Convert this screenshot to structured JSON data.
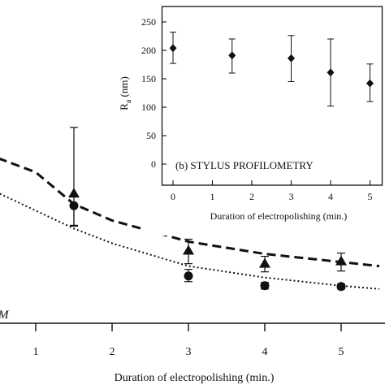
{
  "chart_data": [
    {
      "type": "scatter",
      "xlabel": "Duration of electropolishing (min.)",
      "ylabel": "",
      "xlim": [
        0,
        5.5
      ],
      "ylim": [
        0,
        220
      ],
      "x_ticks": [
        1,
        2,
        3,
        4,
        5
      ],
      "corner_label": "M",
      "grid": false,
      "series": [
        {
          "marker": "triangle",
          "points": [
            {
              "x": 1.5,
              "y": 159,
              "err_low": 119,
              "err_high": 240
            },
            {
              "x": 3,
              "y": 89,
              "err_low": 73,
              "err_high": 103
            },
            {
              "x": 4,
              "y": 73,
              "err_low": 63,
              "err_high": 82
            },
            {
              "x": 5,
              "y": 76,
              "err_low": 64,
              "err_high": 86
            }
          ],
          "fit_line": "dashed",
          "fit_points": [
            [
              0,
              220
            ],
            [
              1,
              185
            ],
            [
              1.5,
              146
            ],
            [
              2,
              126
            ],
            [
              3,
              100
            ],
            [
              4,
              85
            ],
            [
              5,
              75
            ],
            [
              5.5,
              70
            ]
          ]
        },
        {
          "marker": "circle",
          "points": [
            {
              "x": 1.5,
              "y": 144,
              "err_low": 120,
              "err_high": 144
            },
            {
              "x": 3,
              "y": 58,
              "err_low": 51,
              "err_high": 66
            },
            {
              "x": 4,
              "y": 46,
              "err_low": 42,
              "err_high": 50
            },
            {
              "x": 5,
              "y": 45,
              "err_low": 42,
              "err_high": 48
            }
          ],
          "fit_line": "dotted",
          "fit_points": [
            [
              0,
              182
            ],
            [
              1,
              138
            ],
            [
              1.5,
              116
            ],
            [
              2,
              98
            ],
            [
              3,
              70
            ],
            [
              4,
              56
            ],
            [
              5,
              46
            ],
            [
              5.5,
              42
            ]
          ]
        }
      ]
    },
    {
      "type": "scatter",
      "title": "(b) STYLUS PROFILOMETRY",
      "xlabel": "Duration of electropolishing (min.)",
      "ylabel": "Ra (nm)",
      "ylabel_main": "R",
      "ylabel_sub": "a",
      "ylabel_unit": " (nm)",
      "xlim": [
        -0.5,
        5.3
      ],
      "ylim": [
        -15,
        250
      ],
      "x_ticks": [
        0,
        1,
        2,
        3,
        4,
        5
      ],
      "y_ticks": [
        0,
        50,
        100,
        150,
        200,
        250
      ],
      "grid": false,
      "series": [
        {
          "marker": "diamond",
          "points": [
            {
              "x": 0,
              "y": 204,
              "err_low": 177,
              "err_high": 232
            },
            {
              "x": 1.5,
              "y": 191,
              "err_low": 160,
              "err_high": 220
            },
            {
              "x": 3,
              "y": 186,
              "err_low": 145,
              "err_high": 226
            },
            {
              "x": 4,
              "y": 161,
              "err_low": 102,
              "err_high": 220
            },
            {
              "x": 5,
              "y": 142,
              "err_low": 110,
              "err_high": 176
            }
          ]
        }
      ]
    }
  ]
}
